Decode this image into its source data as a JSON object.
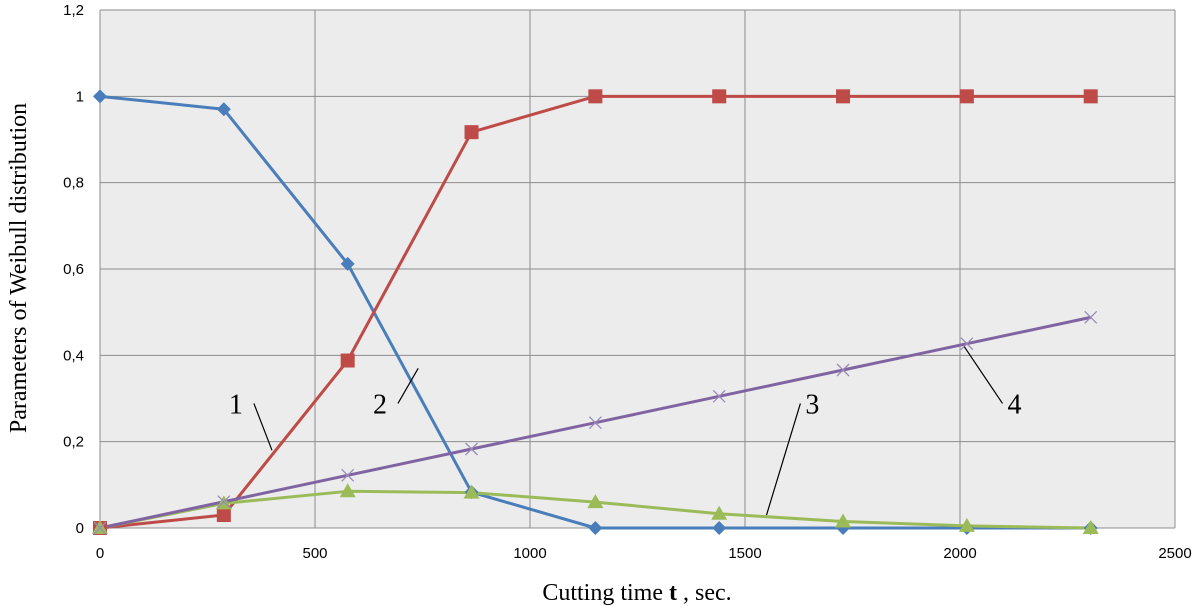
{
  "chart_data": {
    "type": "line",
    "xlabel_prefix": "Cutting time ",
    "xlabel_var": "t",
    "xlabel_suffix": " , sec.",
    "ylabel": "Parameters of Weibull distribution",
    "xlim": [
      0,
      2500
    ],
    "ylim": [
      0,
      1.2
    ],
    "x_ticks": [
      0,
      500,
      1000,
      1500,
      2000,
      2500
    ],
    "x_tick_labels": [
      "0",
      "500",
      "1000",
      "1500",
      "2000",
      "2500"
    ],
    "y_ticks": [
      0,
      0.2,
      0.4,
      0.6,
      0.8,
      1.0,
      1.2
    ],
    "y_tick_labels": [
      "0",
      "0,2",
      "0,4",
      "0,6",
      "0,8",
      "1",
      "1,2"
    ],
    "grid": true,
    "x": [
      0,
      288,
      576,
      864,
      1152,
      1440,
      1728,
      2016,
      2304
    ],
    "series": [
      {
        "label": "1",
        "color": "#4a7ebb",
        "marker": "diamond",
        "values": [
          1.0,
          0.97,
          0.612,
          0.083,
          0.0,
          0.0,
          0.0,
          0.0,
          0.0
        ],
        "callout_anchor": [
          400,
          0.18
        ],
        "callout_text_pos": [
          330,
          0.27
        ]
      },
      {
        "label": "2",
        "color": "#be4b48",
        "marker": "square",
        "values": [
          0.0,
          0.03,
          0.388,
          0.917,
          1.0,
          1.0,
          1.0,
          1.0,
          1.0
        ],
        "callout_anchor": [
          740,
          0.37
        ],
        "callout_text_pos": [
          665,
          0.27
        ]
      },
      {
        "label": "3",
        "color": "#9bbb59",
        "marker": "triangle",
        "values": [
          0.0,
          0.057,
          0.085,
          0.082,
          0.06,
          0.033,
          0.015,
          0.005,
          0.0
        ],
        "callout_anchor": [
          1550,
          0.03
        ],
        "callout_text_pos": [
          1680,
          0.27
        ]
      },
      {
        "label": "4",
        "color": "#8064a2",
        "marker": "x",
        "values": [
          0.0,
          0.061,
          0.122,
          0.183,
          0.244,
          0.305,
          0.366,
          0.427,
          0.488
        ],
        "callout_anchor": [
          2010,
          0.42
        ],
        "callout_text_pos": [
          2150,
          0.27
        ]
      }
    ]
  }
}
